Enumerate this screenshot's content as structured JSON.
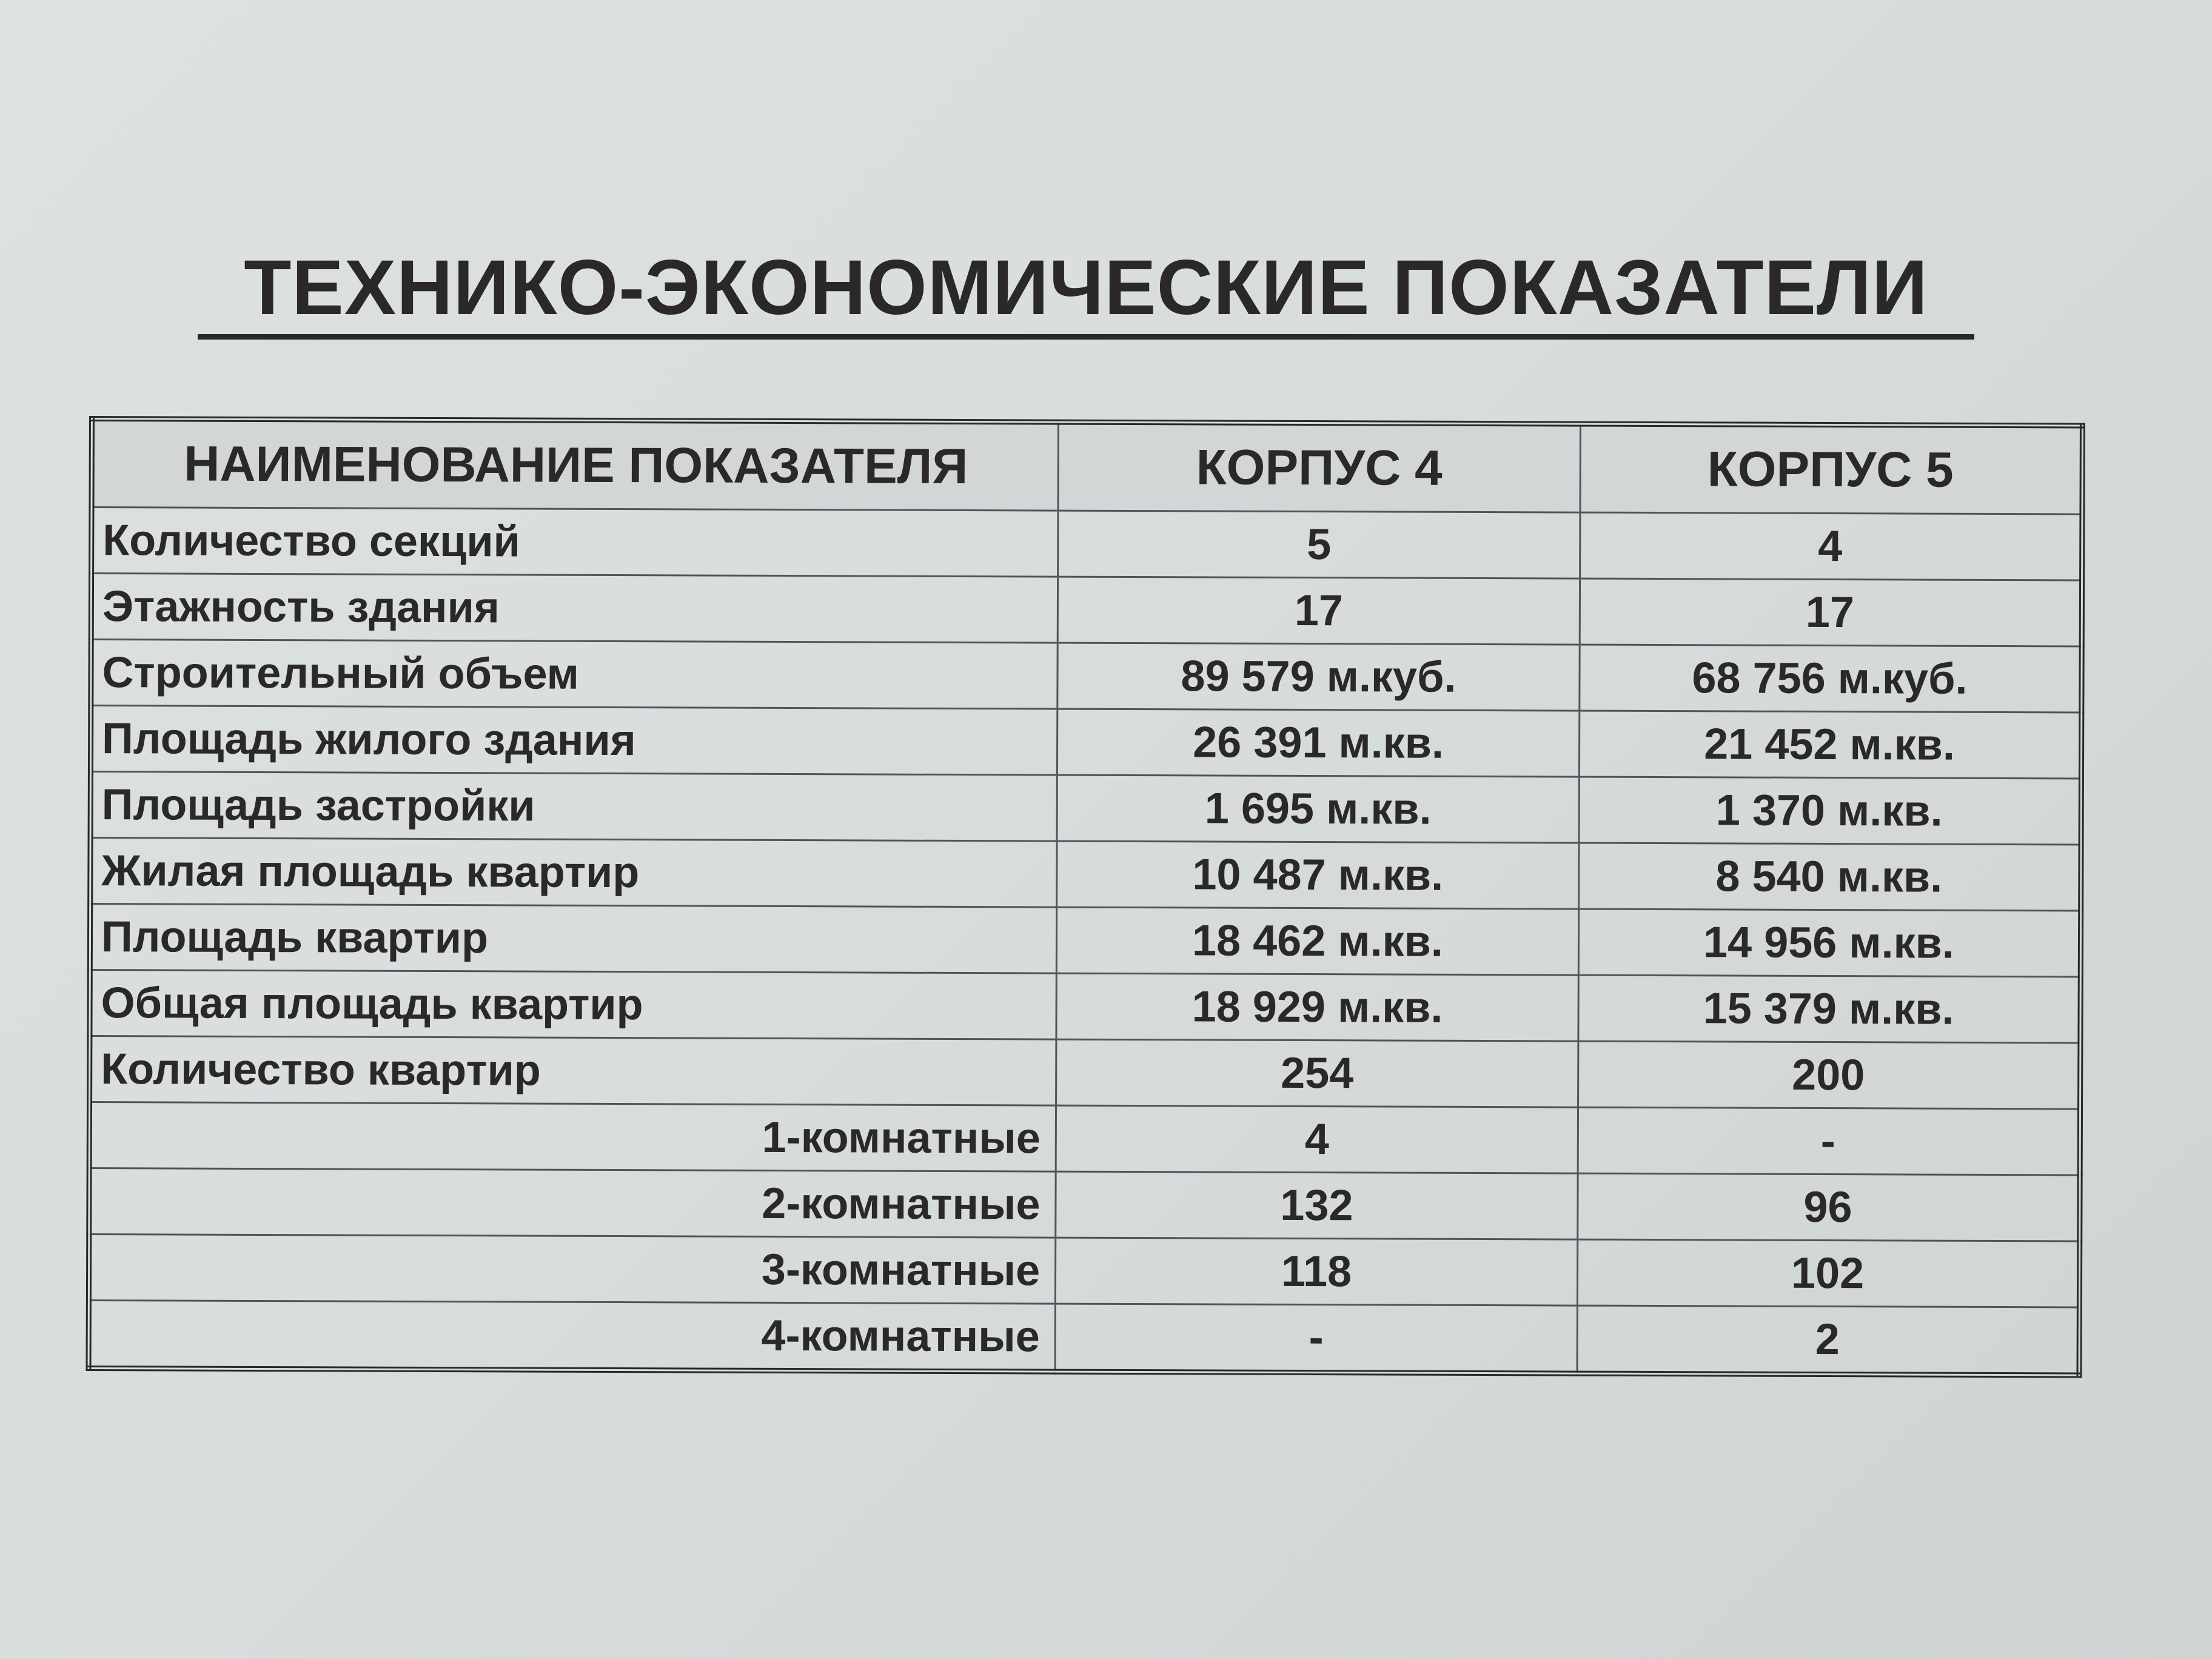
{
  "title": "ТЕХНИКО-ЭКОНОМИЧЕСКИЕ ПОКАЗАТЕЛИ",
  "table": {
    "headers": [
      "НАИМЕНОВАНИЕ ПОКАЗАТЕЛЯ",
      "КОРПУС 4",
      "КОРПУС 5"
    ],
    "rows": [
      {
        "name": "Количество секций",
        "k4": "5",
        "k5": "4",
        "indent": false
      },
      {
        "name": "Этажность здания",
        "k4": "17",
        "k5": "17",
        "indent": false
      },
      {
        "name": "Строительный объем",
        "k4": "89 579 м.куб.",
        "k5": "68 756 м.куб.",
        "indent": false
      },
      {
        "name": "Площадь жилого здания",
        "k4": "26 391 м.кв.",
        "k5": "21 452 м.кв.",
        "indent": false
      },
      {
        "name": "Площадь застройки",
        "k4": "1 695 м.кв.",
        "k5": "1 370 м.кв.",
        "indent": false
      },
      {
        "name": "Жилая площадь квартир",
        "k4": "10 487 м.кв.",
        "k5": "8 540 м.кв.",
        "indent": false
      },
      {
        "name": "Площадь квартир",
        "k4": "18 462 м.кв.",
        "k5": "14 956 м.кв.",
        "indent": false
      },
      {
        "name": "Общая площадь квартир",
        "k4": "18 929 м.кв.",
        "k5": "15 379 м.кв.",
        "indent": false
      },
      {
        "name": "Количество квартир",
        "k4": "254",
        "k5": "200",
        "indent": false
      },
      {
        "name": "1-комнатные",
        "k4": "4",
        "k5": "-",
        "indent": true
      },
      {
        "name": "2-комнатные",
        "k4": "132",
        "k5": "96",
        "indent": true
      },
      {
        "name": "3-комнатные",
        "k4": "118",
        "k5": "102",
        "indent": true
      },
      {
        "name": "4-комнатные",
        "k4": "-",
        "k5": "2",
        "indent": true
      }
    ]
  }
}
